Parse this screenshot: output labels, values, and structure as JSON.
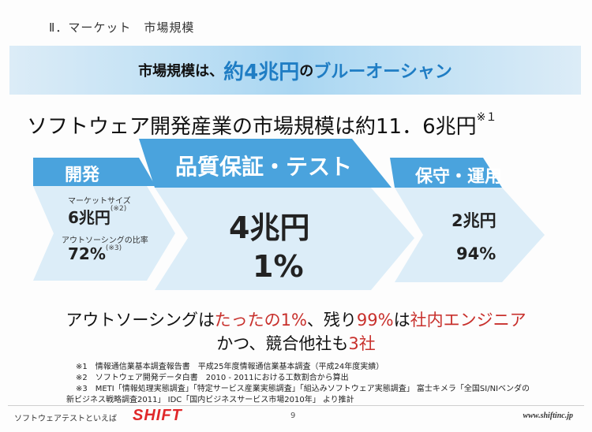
{
  "section_title": "Ⅱ．マーケット　市場規模",
  "banner": {
    "part1": "市場規模は、",
    "part2": "約4兆円",
    "part3": "の",
    "part4": "ブルーオーシャン"
  },
  "headline": {
    "text": "ソフトウェア開発産業の市場規模は約11．6兆円",
    "note": "※１"
  },
  "stages": {
    "dev": {
      "title": "開発",
      "market_label": "マーケットサイズ",
      "market_value": "6兆円",
      "market_note": "(※2)",
      "outsourcing_label": "アウトソーシングの比率",
      "outsourcing_value": "72%",
      "outsourcing_note": "(※3)"
    },
    "qa": {
      "title": "品質保証・テスト",
      "market_value": "4兆円",
      "outsourcing_value": "1%"
    },
    "ops": {
      "title": "保守・運用",
      "market_value": "2兆円",
      "outsourcing_value": "94%"
    }
  },
  "summary": {
    "l1_a": "アウトソーシングは",
    "l1_b": "たったの1%",
    "l1_c": "、残り",
    "l1_d": "99%",
    "l1_e": "は",
    "l1_f": "社内エンジニア",
    "l2_a": "かつ、競合他社も",
    "l2_b": "3社"
  },
  "footnotes": [
    "※1　情報通信業基本調査報告書　平成25年度情報通信業基本調査（平成24年度実績）",
    "※2　ソフトウェア開発データ白書　2010 - 2011における工数割合から算出",
    "※3　METI「情報処理実態調査」「特定サービス産業実態調査」「組込みソフトウェア実態調査」 富士キメラ「全国SI/NIベンダの",
    "新ビジネス戦略調査2011」 IDC「国内ビジネスサービス市場2010年」 より推計"
  ],
  "footer": {
    "tagline": "ソフトウェアテストといえば",
    "logo": "SHIFT",
    "page_number": "9",
    "url": "www.shiftinc.jp"
  },
  "colors": {
    "arrow_header": "#4aa3dd",
    "arrow_body": "#dcedf8",
    "accent_blue": "#1f7dc4",
    "accent_red": "#c8302c"
  }
}
